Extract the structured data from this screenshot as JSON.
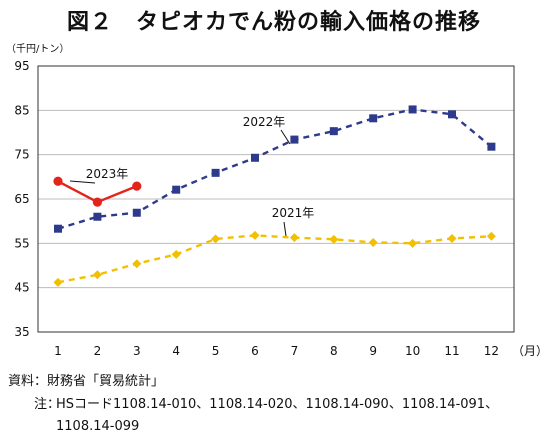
{
  "title": "図２　タピオカでん粉の輸入価格の推移",
  "chart_data": {
    "type": "line",
    "unit_label": "（千円/トン）",
    "xlabel": "（月）",
    "ylabel": "",
    "ylim": [
      35,
      95
    ],
    "yticks": [
      35,
      45,
      55,
      65,
      75,
      85,
      95
    ],
    "x": [
      1,
      2,
      3,
      4,
      5,
      6,
      7,
      8,
      9,
      10,
      11,
      12
    ],
    "grid": true,
    "series": [
      {
        "name": "2021年",
        "color": "#f2c000",
        "marker": "diamond",
        "dash": "6,5",
        "x": [
          1,
          2,
          3,
          4,
          5,
          6,
          7,
          8,
          9,
          10,
          11,
          12
        ],
        "values": [
          46.2,
          47.9,
          50.4,
          52.5,
          56.0,
          56.8,
          56.3,
          55.9,
          55.2,
          55.0,
          56.1,
          56.6
        ]
      },
      {
        "name": "2022年",
        "color": "#2e3a8c",
        "marker": "square",
        "dash": "6,5",
        "x": [
          1,
          2,
          3,
          4,
          5,
          6,
          7,
          8,
          9,
          10,
          11,
          12
        ],
        "values": [
          58.3,
          61.0,
          61.9,
          67.1,
          70.9,
          74.3,
          78.4,
          80.3,
          83.2,
          85.2,
          84.1,
          76.8
        ]
      },
      {
        "name": "2023年",
        "color": "#e3241b",
        "marker": "circle",
        "dash": "",
        "x": [
          1,
          2,
          3
        ],
        "values": [
          69.0,
          64.3,
          67.9
        ]
      }
    ]
  },
  "footer": {
    "source": "資料：財務省「貿易統計」",
    "note_label": "注：",
    "note_text": "HSコード1108.14-010、1108.14-020、1108.14-090、1108.14-091、",
    "note_text2": "1108.14-099"
  }
}
